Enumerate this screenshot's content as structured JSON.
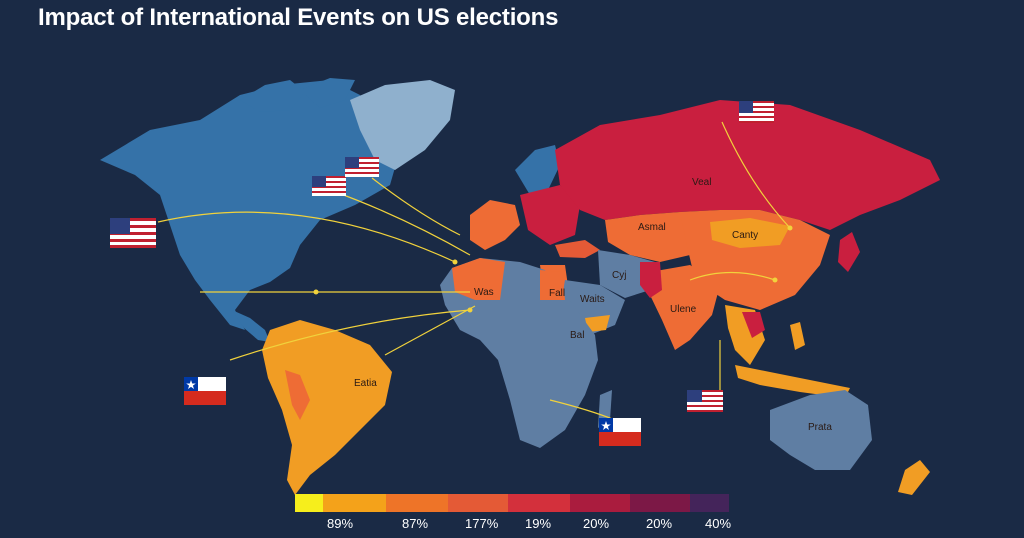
{
  "title": "Impact of International Events on US elections",
  "region_labels": {
    "russia": "Veal",
    "central_asia": "Asmal",
    "china": "Canty",
    "north_africa": "Was",
    "middle_east": "Fall",
    "arabia": "Waits",
    "iran": "Cyj",
    "east_africa": "Bal",
    "india": "Ulene",
    "south_america": "Eatia",
    "australia": "Prata"
  },
  "flags": [
    {
      "country": "United States",
      "icon": "us-flag-icon"
    },
    {
      "country": "United States",
      "icon": "us-flag-icon"
    },
    {
      "country": "United States",
      "icon": "us-flag-icon"
    },
    {
      "country": "United States",
      "icon": "us-flag-icon"
    },
    {
      "country": "United States",
      "icon": "us-flag-icon"
    },
    {
      "country": "Chile",
      "icon": "chile-flag-icon"
    },
    {
      "country": "Chile",
      "icon": "chile-flag-icon"
    }
  ],
  "legend": {
    "colors": [
      "#f6ee1c",
      "#f4a21a",
      "#ee7428",
      "#e45a36",
      "#d3303c",
      "#aa1c3e",
      "#7c1846",
      "#44245a"
    ],
    "labels": [
      "89%",
      "87%",
      "177%",
      "19%",
      "20%",
      "20%",
      "40%"
    ]
  },
  "colors": {
    "background": "#1a2a45",
    "ocean_blue": "#3572a8",
    "greenland": "#8fb0cd",
    "africa": "#5f7ea3",
    "orange": "#f19d24",
    "red": "#c91f3f",
    "coral": "#ee6c35",
    "connector": "#f1d23c"
  }
}
